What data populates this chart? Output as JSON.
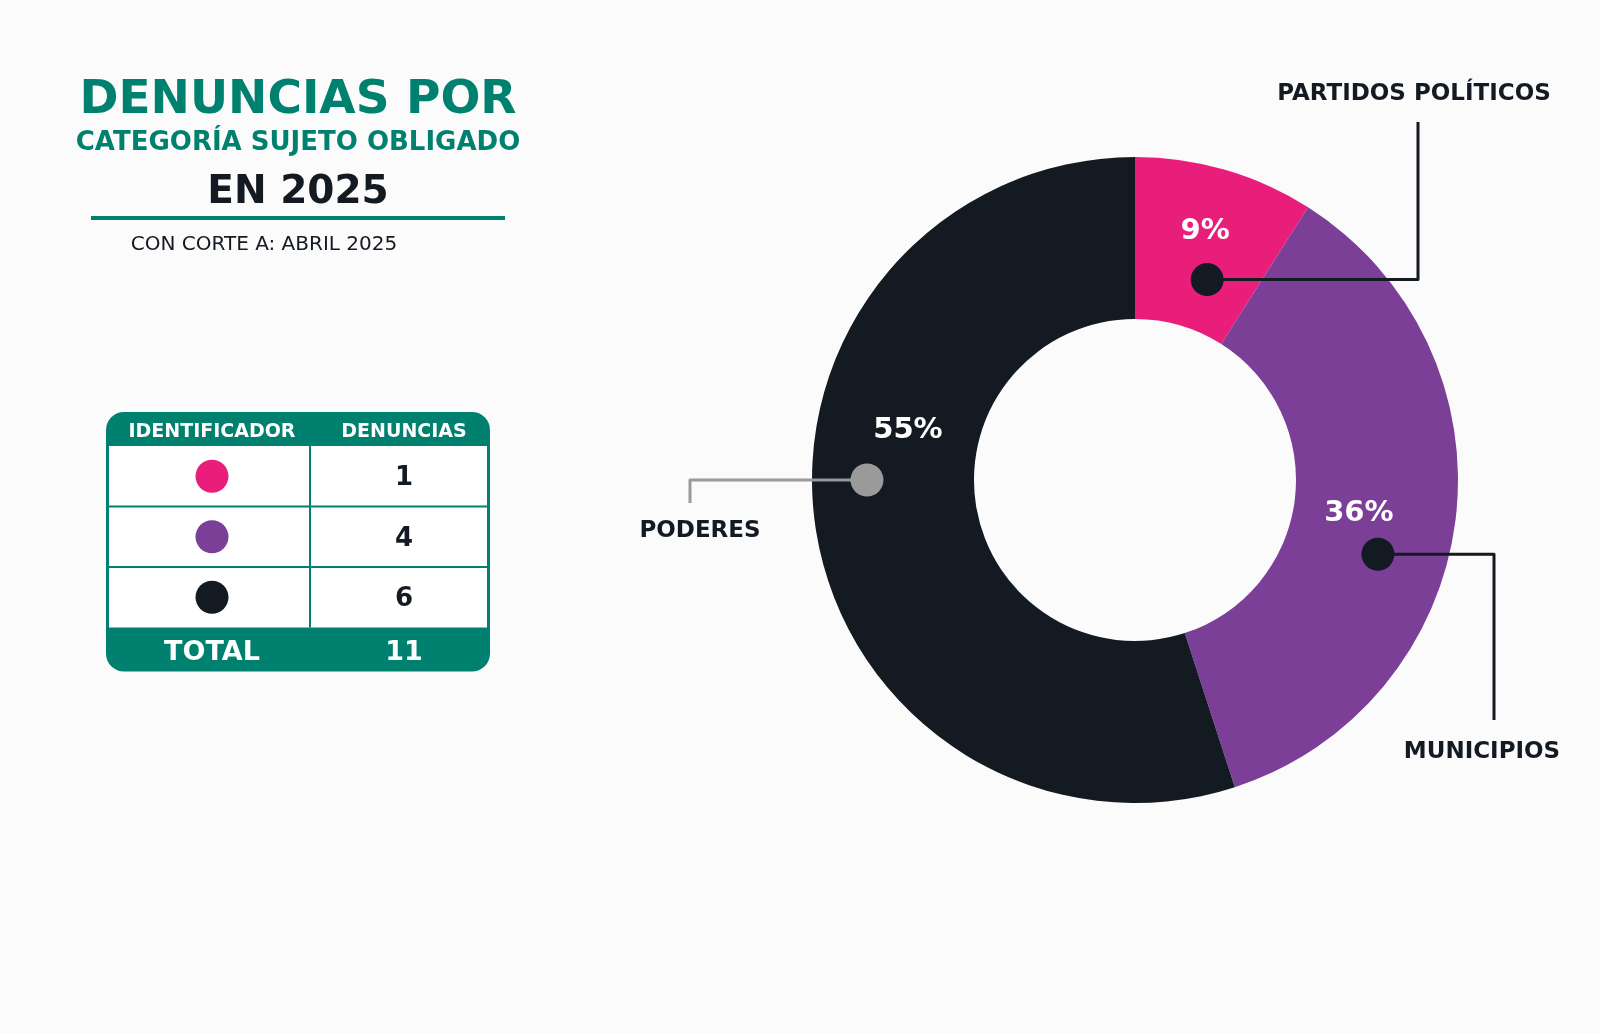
{
  "chart_data": {
    "type": "donut",
    "title": "DENUNCIAS POR CATEGORÍA SUJETO OBLIGADO",
    "subtitle": "EN 2025",
    "annotations": [
      "CON CORTE A: ABRIL 2025",
      "IDENTIFICADOR",
      "DENUNCIAS",
      "1",
      "4",
      "6",
      "TOTAL",
      "11"
    ],
    "categories": [
      "PARTIDOS POLÍTICOS",
      "MUNICIPIOS",
      "PODERES"
    ],
    "values": [
      9,
      36,
      55
    ],
    "colors": [
      "#e91e7b",
      "#7b3f98",
      "#131a22"
    ],
    "value_labels": [
      "9%",
      "36%",
      "55%"
    ]
  }
}
